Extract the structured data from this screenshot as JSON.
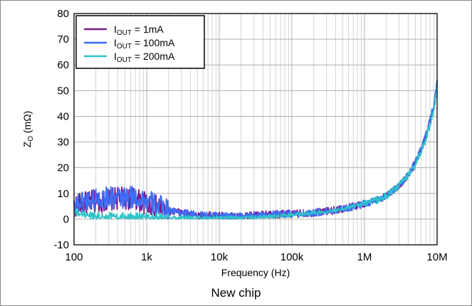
{
  "chart_data": {
    "type": "line",
    "xlabel": "Frequency (Hz)",
    "ylabel_main": "Z",
    "ylabel_sub": "O",
    "ylabel_unit": " (mΩ)",
    "xscale": "log",
    "xlim": [
      100,
      10000000
    ],
    "ylim": [
      -10,
      80
    ],
    "grid": true,
    "legend_position": "top-left",
    "x_ticks": [
      {
        "value": 100,
        "label": "100"
      },
      {
        "value": 1000,
        "label": "1k"
      },
      {
        "value": 10000,
        "label": "10k"
      },
      {
        "value": 100000,
        "label": "100k"
      },
      {
        "value": 1000000,
        "label": "1M"
      },
      {
        "value": 10000000,
        "label": "10M"
      }
    ],
    "y_ticks": [
      {
        "value": -10,
        "label": "-10"
      },
      {
        "value": 0,
        "label": "0"
      },
      {
        "value": 10,
        "label": "10"
      },
      {
        "value": 20,
        "label": "20"
      },
      {
        "value": 30,
        "label": "30"
      },
      {
        "value": 40,
        "label": "40"
      },
      {
        "value": 50,
        "label": "50"
      },
      {
        "value": 60,
        "label": "60"
      },
      {
        "value": 70,
        "label": "70"
      },
      {
        "value": 80,
        "label": "80"
      }
    ],
    "series": [
      {
        "label_main": "I",
        "label_sub": "OUT",
        "label_rest": " = 1mA",
        "color": "#7a1a8c",
        "x": [
          100,
          130,
          160,
          200,
          250,
          300,
          400,
          500,
          600,
          700,
          800,
          1000,
          1500,
          2000,
          3000,
          5000,
          10000,
          20000,
          30000,
          50000,
          100000,
          200000,
          300000,
          500000,
          1000000,
          1500000,
          2000000,
          3000000,
          4000000,
          5000000,
          6000000,
          7000000,
          8000000,
          9000000,
          10000000
        ],
        "values": [
          5,
          6,
          6.5,
          7,
          7,
          7.5,
          8,
          8,
          8,
          8,
          7,
          6,
          4.5,
          3,
          2.5,
          1.5,
          1.2,
          1,
          1.5,
          1.8,
          2,
          2.5,
          3,
          4,
          6,
          7.5,
          9,
          13,
          17,
          22,
          27,
          32,
          38,
          43,
          53
        ]
      },
      {
        "label_main": "I",
        "label_sub": "OUT",
        "label_rest": " = 100mA",
        "color": "#3d6ef5",
        "x": [
          100,
          130,
          160,
          200,
          250,
          300,
          400,
          500,
          600,
          700,
          800,
          1000,
          1500,
          2000,
          3000,
          5000,
          10000,
          20000,
          30000,
          50000,
          100000,
          200000,
          300000,
          500000,
          1000000,
          1500000,
          2000000,
          3000000,
          4000000,
          5000000,
          6000000,
          7000000,
          8000000,
          9000000,
          10000000
        ],
        "values": [
          6,
          7,
          7.5,
          8,
          8,
          8.5,
          8,
          8,
          8.5,
          8.5,
          8,
          7,
          5,
          3.5,
          2.5,
          1.5,
          1.2,
          1,
          1.5,
          1.8,
          2,
          2.5,
          3,
          4,
          6,
          7.5,
          9,
          13,
          17,
          22,
          27,
          33,
          39,
          44,
          55
        ]
      },
      {
        "label_main": "I",
        "label_sub": "OUT",
        "label_rest": " = 200mA",
        "color": "#2ec4c9",
        "x": [
          100,
          130,
          160,
          200,
          250,
          300,
          400,
          500,
          600,
          700,
          800,
          1000,
          1500,
          2000,
          3000,
          5000,
          10000,
          20000,
          30000,
          50000,
          100000,
          200000,
          300000,
          500000,
          1000000,
          1500000,
          2000000,
          3000000,
          4000000,
          5000000,
          6000000,
          7000000,
          8000000,
          9000000,
          10000000
        ],
        "values": [
          2.5,
          2,
          1.5,
          1.2,
          1,
          1,
          1,
          1,
          1,
          1,
          1,
          1,
          0.8,
          0.7,
          0.6,
          0.5,
          0.5,
          0.5,
          0.7,
          1,
          1.5,
          2.5,
          3,
          4,
          6,
          7.5,
          9,
          13,
          17,
          21,
          26,
          31,
          37,
          42,
          52
        ]
      }
    ]
  },
  "caption": "New chip"
}
